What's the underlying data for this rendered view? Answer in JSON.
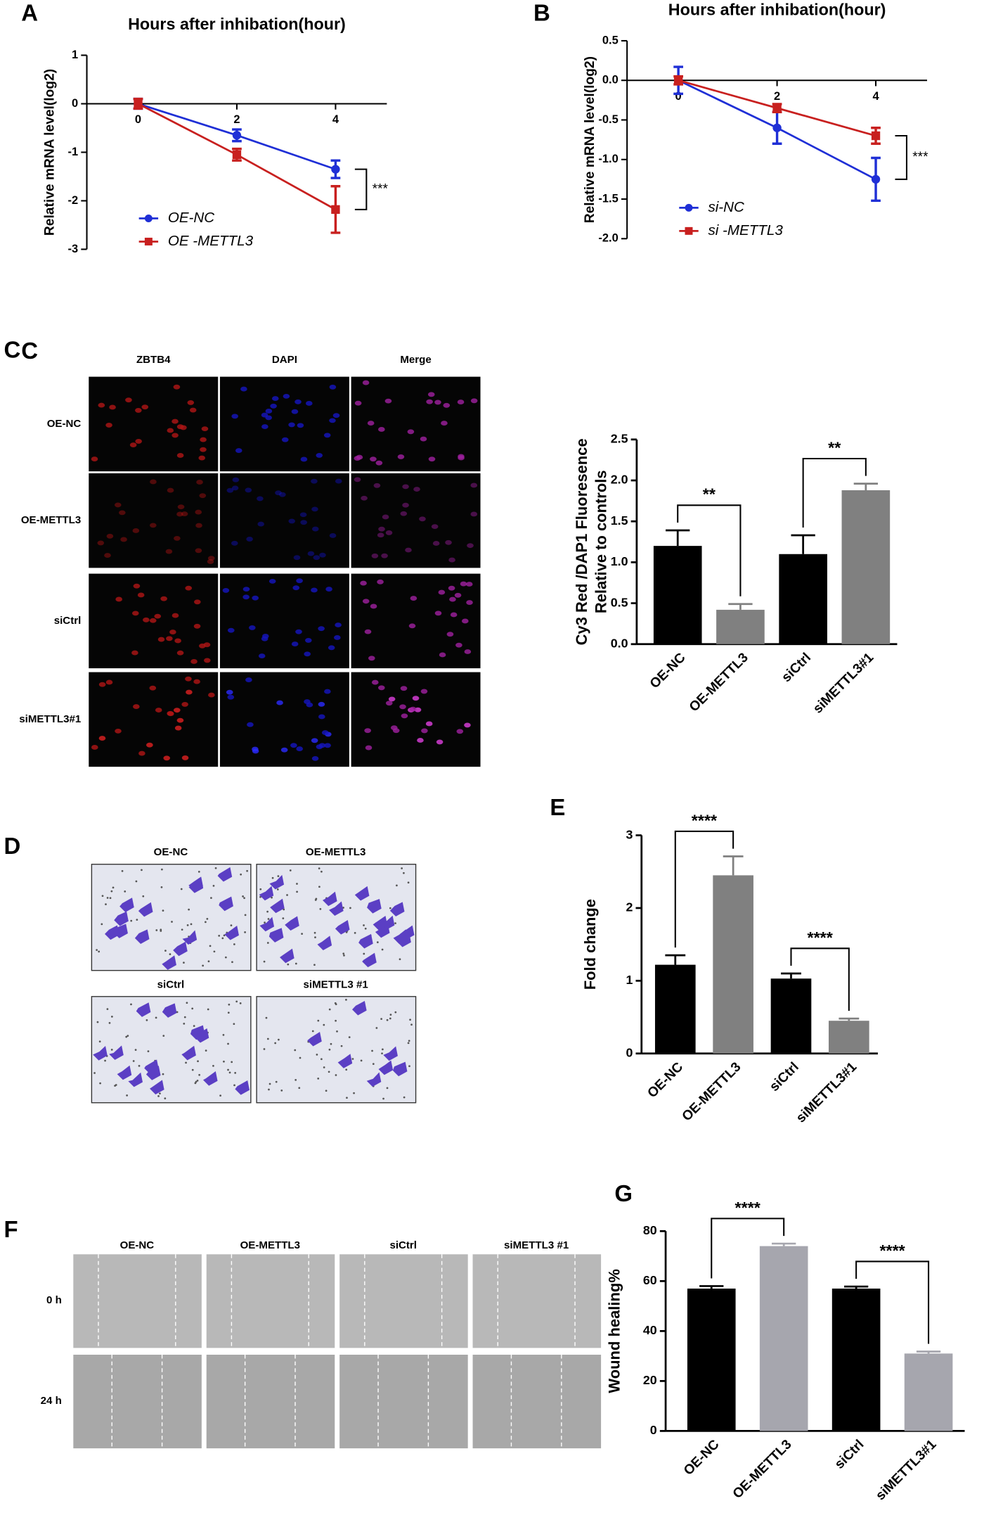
{
  "figure": {
    "panels": [
      {
        "letter": "C",
        "columns": [
          "ZBTB4",
          "DAPI",
          "Merge"
        ],
        "rows": [
          "OE-NC",
          "OE-METTL3",
          "siCtrl",
          "siMETTL3#1"
        ]
      },
      {
        "letter": "D",
        "labels": [
          "OE-NC",
          "OE-METTL3",
          "siCtrl",
          "siMETTL3 #1"
        ]
      },
      {
        "letter": "F",
        "columns": [
          "OE-NC",
          "OE-METTL3",
          "siCtrl",
          "siMETTL3 #1"
        ],
        "rows": [
          "0 h",
          "24 h"
        ]
      }
    ]
  },
  "chart_data": [
    {
      "type": "line",
      "panel": "A",
      "title": "Hours after inhibation(hour)",
      "y_label": "Relative mRNA level(log2)",
      "x": [
        0,
        2,
        4
      ],
      "xlim": [
        -1,
        5
      ],
      "xticks": [
        0,
        2,
        4
      ],
      "ylim": [
        -3,
        1
      ],
      "yticks": [
        1,
        0,
        -1,
        -2,
        -3
      ],
      "legend": "lower left",
      "annotation": "***",
      "series": [
        {
          "name": "OE-NC",
          "color": "#1f2fd6",
          "marker": "circle",
          "values": [
            0,
            -0.65,
            -1.35
          ],
          "errors": [
            0.1,
            0.12,
            0.18
          ]
        },
        {
          "name": "OE -METTL3",
          "color": "#c8201f",
          "marker": "square",
          "values": [
            0,
            -1.05,
            -2.18
          ],
          "errors": [
            0.1,
            0.12,
            0.48
          ]
        }
      ]
    },
    {
      "type": "line",
      "panel": "B",
      "title": "Hours after inhibation(hour)",
      "y_label": "Relative mRNA level(log2)",
      "x": [
        0,
        2,
        4
      ],
      "xlim": [
        -1,
        5
      ],
      "xticks": [
        0,
        2,
        4
      ],
      "ylim": [
        -2,
        0.5
      ],
      "yticks": [
        0.5,
        {
          "value": 0,
          "label": "0.0"
        },
        -0.5,
        {
          "value": -1,
          "label": "-1.0"
        },
        -1.5,
        {
          "value": -2,
          "label": "-2.0"
        }
      ],
      "legend": "lower left",
      "annotation": "***",
      "series": [
        {
          "name": "si-NC",
          "color": "#1f2fd6",
          "marker": "circle",
          "values": [
            0,
            -0.6,
            -1.25
          ],
          "errors": [
            0.17,
            0.2,
            0.27
          ]
        },
        {
          "name": "si -METTL3",
          "color": "#c8201f",
          "marker": "square",
          "values": [
            0,
            -0.35,
            -0.7
          ],
          "errors": [
            0.05,
            0.05,
            0.1
          ]
        }
      ]
    },
    {
      "type": "bar",
      "panel": "C",
      "y_label": [
        "Cy3 Red /DAP1 Fluoresence",
        "Relative to controls"
      ],
      "categories": [
        "OE-NC",
        "OE-METTL3",
        "siCtrl",
        "siMETTL3#1"
      ],
      "values": [
        1.2,
        0.42,
        1.1,
        1.88
      ],
      "errors": [
        0.19,
        0.07,
        0.23,
        0.08
      ],
      "colors": [
        "#000000",
        "#808080",
        "#000000",
        "#808080"
      ],
      "ylim": [
        0,
        2.5
      ],
      "yticks": [
        {
          "value": 0,
          "label": "0.0"
        },
        0.5,
        {
          "value": 1,
          "label": "1.0"
        },
        1.5,
        {
          "value": 2,
          "label": "2.0"
        },
        2.5
      ],
      "annotations": [
        "**",
        "**"
      ]
    },
    {
      "type": "bar",
      "panel": "E",
      "y_label": [
        "Fold change"
      ],
      "categories": [
        "OE-NC",
        "OE-METTL3",
        "siCtrl",
        "siMETTL3#1"
      ],
      "values": [
        1.22,
        2.45,
        1.03,
        0.45
      ],
      "errors": [
        0.13,
        0.26,
        0.07,
        0.03
      ],
      "colors": [
        "#000000",
        "#808080",
        "#000000",
        "#808080"
      ],
      "ylim": [
        0,
        3
      ],
      "yticks": [
        0,
        1,
        2,
        3
      ],
      "annotations": [
        "****",
        "****"
      ]
    },
    {
      "type": "bar",
      "panel": "G",
      "y_label": [
        "Wound healing%"
      ],
      "categories": [
        "OE-NC",
        "OE-METTL3",
        "siCtrl",
        "siMETTL3#1"
      ],
      "values": [
        57,
        74,
        57,
        31
      ],
      "errors": [
        1,
        1,
        0.8,
        0.8
      ],
      "colors": [
        "#000000",
        "#a6a6ae",
        "#000000",
        "#a6a6ae"
      ],
      "ylim": [
        0,
        80
      ],
      "yticks": [
        0,
        20,
        40,
        60,
        80
      ],
      "annotations": [
        "****",
        "****"
      ]
    }
  ]
}
